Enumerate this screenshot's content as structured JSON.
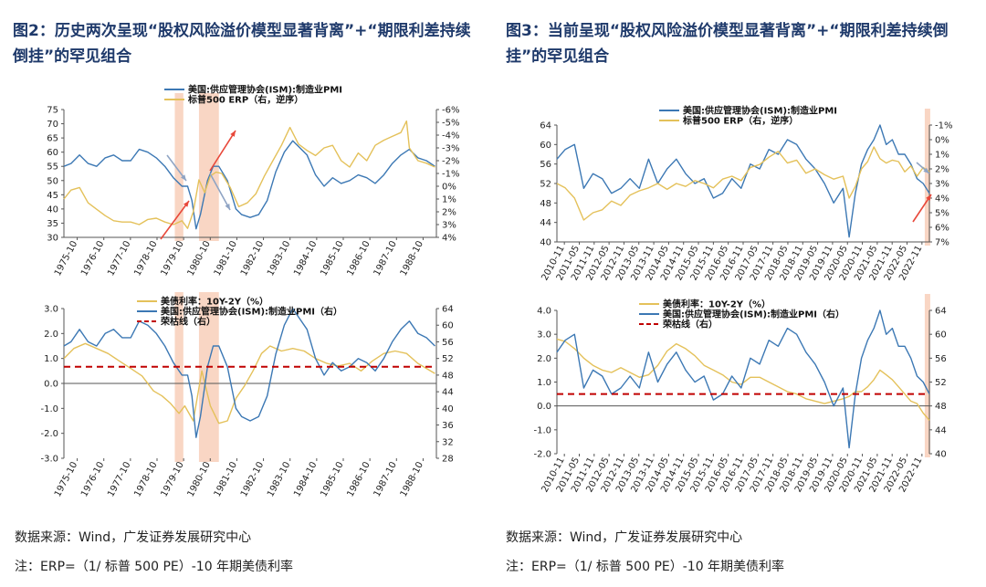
{
  "figures": [
    {
      "title": "图2：历史两次呈现“股权风险溢价模型显著背离”+“期限利差持续倒挂”的罕见组合",
      "source": "数据来源：Wind，广发证券发展研究中心",
      "note": "注：ERP=（1/ 标普 500 PE）-10 年期美债利率"
    },
    {
      "title": "图3：当前呈现“股权风险溢价模型显著背离”+“期限利差持续倒挂”的罕见组合",
      "source": "数据来源：Wind，广发证券发展研究中心",
      "note": "注：ERP=（1/ 标普 500 PE）-10 年期美债利率"
    }
  ],
  "chart_data": [
    {
      "type": "line",
      "x_ticks": [
        "1975-10",
        "1976-10",
        "1977-10",
        "1978-10",
        "1979-10",
        "1980-10",
        "1981-10",
        "1982-10",
        "1983-10",
        "1984-10",
        "1985-10",
        "1986-10",
        "1987-10",
        "1988-10"
      ],
      "x_range": [
        1975.75,
        1988.85
      ],
      "left_ylim": [
        30,
        75
      ],
      "left_ticks": [
        30,
        35,
        40,
        45,
        50,
        55,
        60,
        65,
        70,
        75
      ],
      "right_ylim": [
        4,
        -6
      ],
      "right_ticks": [
        "4%",
        "3%",
        "2%",
        "1%",
        "0%",
        "-1%",
        "-2%",
        "-3%",
        "-4%",
        "-5%",
        "-6%"
      ],
      "right_inverted": true,
      "series": [
        {
          "name": "美国:供应管理协会(ISM):制造业PMI",
          "axis": "left",
          "color": "#3c78b4",
          "x": [
            1975.75,
            1976.0,
            1976.3,
            1976.6,
            1976.9,
            1977.2,
            1977.5,
            1977.8,
            1978.1,
            1978.4,
            1978.7,
            1979.0,
            1979.3,
            1979.6,
            1979.9,
            1980.1,
            1980.25,
            1980.4,
            1980.55,
            1980.8,
            1981.0,
            1981.2,
            1981.5,
            1981.8,
            1982.0,
            1982.3,
            1982.6,
            1982.9,
            1983.2,
            1983.5,
            1983.8,
            1984.0,
            1984.3,
            1984.6,
            1984.9,
            1985.2,
            1985.5,
            1985.8,
            1986.1,
            1986.4,
            1986.7,
            1987.0,
            1987.3,
            1987.6,
            1987.9,
            1988.2,
            1988.5,
            1988.8
          ],
          "y": [
            55,
            56,
            59,
            56,
            55,
            58,
            59,
            57,
            57,
            61,
            60,
            58,
            55,
            51,
            48,
            48,
            43,
            33,
            38,
            50,
            55,
            55,
            50,
            40,
            38,
            37,
            38,
            43,
            53,
            60,
            64,
            62,
            59,
            52,
            48,
            51,
            49,
            50,
            52,
            51,
            49,
            52,
            56,
            59,
            61,
            58,
            57,
            55
          ]
        },
        {
          "name": "标普500 ERP（右，逆序）",
          "axis": "right",
          "color": "#e4c15a",
          "x": [
            1975.75,
            1976.0,
            1976.3,
            1976.6,
            1976.9,
            1977.2,
            1977.5,
            1977.8,
            1978.1,
            1978.4,
            1978.7,
            1979.0,
            1979.3,
            1979.6,
            1979.9,
            1980.1,
            1980.3,
            1980.5,
            1980.7,
            1980.9,
            1981.1,
            1981.3,
            1981.6,
            1981.9,
            1982.2,
            1982.5,
            1982.8,
            1983.1,
            1983.4,
            1983.7,
            1984.0,
            1984.3,
            1984.6,
            1984.9,
            1985.2,
            1985.5,
            1985.8,
            1986.1,
            1986.4,
            1986.7,
            1987.0,
            1987.3,
            1987.6,
            1987.8,
            1987.9,
            1988.2,
            1988.5,
            1988.8
          ],
          "y": [
            1.0,
            0.3,
            0.1,
            1.3,
            1.8,
            2.3,
            2.7,
            2.8,
            2.8,
            3.0,
            2.6,
            2.5,
            2.8,
            3.0,
            2.7,
            3.3,
            2.0,
            -0.5,
            0.5,
            -0.8,
            -1.1,
            -1.0,
            0.1,
            1.6,
            1.3,
            0.6,
            -0.8,
            -2.0,
            -3.2,
            -4.6,
            -3.3,
            -2.8,
            -2.4,
            -3.0,
            -3.2,
            -2.0,
            -1.5,
            -2.6,
            -2.0,
            -3.2,
            -3.6,
            -3.9,
            -4.2,
            -5.1,
            -3.0,
            -2.0,
            -1.8,
            -1.5
          ]
        }
      ],
      "shaded_x": [
        [
          1979.65,
          1979.95
        ],
        [
          1980.5,
          1981.2
        ]
      ]
    },
    {
      "type": "line",
      "x_ticks": [
        "1975-10",
        "1976-10",
        "1977-10",
        "1978-10",
        "1979-10",
        "1980-10",
        "1981-10",
        "1982-10",
        "1983-10",
        "1984-10",
        "1985-10",
        "1986-10",
        "1987-10",
        "1988-10"
      ],
      "x_range": [
        1975.75,
        1988.85
      ],
      "left_ylim": [
        -3,
        3
      ],
      "left_ticks": [
        "-3.0",
        "-2.0",
        "-1.0",
        "0.0",
        "1.0",
        "2.0",
        "3.0"
      ],
      "right_ylim": [
        28,
        64
      ],
      "right_ticks": [
        28,
        32,
        36,
        40,
        44,
        48,
        52,
        56,
        60,
        64
      ],
      "series": [
        {
          "name": "美债利率：10Y-2Y（%）",
          "axis": "left",
          "color": "#e4c15a",
          "x": [
            1975.75,
            1976.1,
            1976.5,
            1976.9,
            1977.3,
            1977.7,
            1978.1,
            1978.5,
            1978.9,
            1979.2,
            1979.5,
            1979.8,
            1980.0,
            1980.3,
            1980.6,
            1980.9,
            1981.2,
            1981.5,
            1981.8,
            1982.1,
            1982.4,
            1982.7,
            1983.0,
            1983.4,
            1983.8,
            1984.2,
            1984.6,
            1985.0,
            1985.4,
            1985.8,
            1986.2,
            1986.6,
            1987.0,
            1987.4,
            1987.8,
            1988.2,
            1988.5,
            1988.8
          ],
          "y": [
            1.0,
            1.4,
            1.6,
            1.4,
            1.2,
            0.9,
            0.6,
            0.3,
            -0.3,
            -0.5,
            -0.8,
            -1.2,
            -0.9,
            -1.5,
            0.5,
            -0.9,
            -1.6,
            -1.5,
            -0.6,
            -0.1,
            0.5,
            1.2,
            1.5,
            1.3,
            1.4,
            1.3,
            1.0,
            0.8,
            0.7,
            0.8,
            0.5,
            0.9,
            1.2,
            1.3,
            1.2,
            0.8,
            0.6,
            0.4
          ]
        },
        {
          "name": "美国:供应管理协会(ISM):制造业PMI（右）",
          "axis": "right",
          "color": "#3c78b4",
          "x": [
            1975.75,
            1976.0,
            1976.3,
            1976.6,
            1976.9,
            1977.2,
            1977.5,
            1977.8,
            1978.1,
            1978.4,
            1978.7,
            1979.0,
            1979.3,
            1979.6,
            1979.9,
            1980.1,
            1980.25,
            1980.4,
            1980.55,
            1980.8,
            1981.0,
            1981.2,
            1981.5,
            1981.8,
            1982.0,
            1982.3,
            1982.6,
            1982.9,
            1983.2,
            1983.5,
            1983.8,
            1984.0,
            1984.3,
            1984.6,
            1984.9,
            1985.2,
            1985.5,
            1985.8,
            1986.1,
            1986.4,
            1986.7,
            1987.0,
            1987.3,
            1987.6,
            1987.9,
            1988.2,
            1988.5,
            1988.8
          ],
          "y": [
            55,
            56,
            59,
            56,
            55,
            58,
            59,
            57,
            57,
            61,
            60,
            58,
            55,
            51,
            48,
            48,
            43,
            33,
            38,
            50,
            55,
            55,
            50,
            40,
            38,
            37,
            38,
            43,
            53,
            60,
            64,
            62,
            59,
            52,
            48,
            51,
            49,
            50,
            52,
            51,
            49,
            52,
            56,
            59,
            61,
            58,
            57,
            55
          ]
        },
        {
          "name": "荣枯线（右）",
          "axis": "right",
          "color": "#c00000",
          "dashed": true,
          "x": [
            1975.75,
            1988.85
          ],
          "y": [
            50,
            50
          ]
        }
      ],
      "shaded_x": [
        [
          1979.65,
          1979.95
        ],
        [
          1980.5,
          1981.2
        ]
      ]
    },
    {
      "type": "line",
      "x_ticks": [
        "2010-11",
        "2011-05",
        "2011-11",
        "2012-05",
        "2012-11",
        "2013-05",
        "2013-11",
        "2014-05",
        "2014-11",
        "2015-05",
        "2015-11",
        "2016-05",
        "2016-11",
        "2017-05",
        "2017-11",
        "2018-05",
        "2018-11",
        "2019-05",
        "2019-11",
        "2020-05",
        "2020-11",
        "2021-05",
        "2021-11",
        "2022-05",
        "2022-11"
      ],
      "x_range": [
        2010.83,
        2022.9
      ],
      "left_ylim": [
        40,
        64
      ],
      "left_ticks": [
        40,
        44,
        48,
        52,
        56,
        60,
        64
      ],
      "right_ylim": [
        7,
        -1
      ],
      "right_ticks": [
        "7%",
        "6%",
        "5%",
        "4%",
        "3%",
        "2%",
        "1%",
        "0%",
        "-1%"
      ],
      "right_inverted": true,
      "series": [
        {
          "name": "美国:供应管理协会(ISM):制造业PMI",
          "axis": "left",
          "color": "#3c78b4",
          "x": [
            2010.83,
            2011.1,
            2011.4,
            2011.7,
            2012.0,
            2012.3,
            2012.6,
            2012.9,
            2013.2,
            2013.5,
            2013.8,
            2014.1,
            2014.4,
            2014.7,
            2015.0,
            2015.3,
            2015.6,
            2015.9,
            2016.2,
            2016.5,
            2016.8,
            2017.1,
            2017.4,
            2017.7,
            2018.0,
            2018.3,
            2018.6,
            2018.9,
            2019.2,
            2019.5,
            2019.8,
            2020.1,
            2020.3,
            2020.5,
            2020.7,
            2020.9,
            2021.1,
            2021.3,
            2021.5,
            2021.7,
            2021.9,
            2022.1,
            2022.3,
            2022.5,
            2022.7,
            2022.9
          ],
          "y": [
            57,
            59,
            60,
            51,
            54,
            53,
            50,
            51,
            53,
            51,
            57,
            52,
            55,
            57,
            54,
            52,
            53,
            49,
            50,
            53,
            51,
            56,
            55,
            59,
            58,
            61,
            60,
            57,
            55,
            52,
            48,
            51,
            41,
            50,
            56,
            59,
            61,
            64,
            60,
            61,
            58,
            58,
            56,
            53,
            52,
            50
          ]
        },
        {
          "name": "标普500 ERP（右，逆序）",
          "axis": "right",
          "color": "#e4c15a",
          "x": [
            2010.83,
            2011.1,
            2011.4,
            2011.7,
            2012.0,
            2012.3,
            2012.6,
            2012.9,
            2013.2,
            2013.5,
            2013.8,
            2014.1,
            2014.4,
            2014.7,
            2015.0,
            2015.3,
            2015.6,
            2015.9,
            2016.2,
            2016.5,
            2016.8,
            2017.1,
            2017.4,
            2017.7,
            2018.0,
            2018.3,
            2018.6,
            2018.9,
            2019.2,
            2019.5,
            2019.8,
            2020.1,
            2020.3,
            2020.5,
            2020.7,
            2020.9,
            2021.1,
            2021.3,
            2021.5,
            2021.7,
            2021.9,
            2022.1,
            2022.3,
            2022.5,
            2022.7,
            2022.9
          ],
          "y": [
            3.0,
            3.3,
            4.0,
            5.5,
            5.0,
            4.8,
            4.2,
            4.5,
            3.8,
            3.5,
            3.3,
            3.0,
            3.4,
            3.0,
            3.2,
            2.8,
            3.0,
            3.3,
            2.7,
            2.5,
            2.8,
            1.9,
            1.7,
            1.2,
            0.8,
            1.6,
            1.4,
            2.3,
            2.0,
            2.4,
            2.7,
            2.5,
            4.0,
            3.2,
            2.0,
            1.5,
            0.5,
            1.3,
            1.6,
            1.4,
            1.5,
            2.2,
            1.8,
            2.5,
            1.9,
            2.2
          ]
        }
      ],
      "shaded_x": [
        [
          2022.75,
          2022.9
        ]
      ]
    },
    {
      "type": "line",
      "x_ticks": [
        "2010-11",
        "2011-05",
        "2011-11",
        "2012-05",
        "2012-11",
        "2013-05",
        "2013-11",
        "2014-05",
        "2014-11",
        "2015-05",
        "2015-11",
        "2016-05",
        "2016-11",
        "2017-05",
        "2017-11",
        "2018-05",
        "2018-11",
        "2019-05",
        "2019-11",
        "2020-05",
        "2020-11",
        "2021-05",
        "2021-11",
        "2022-05",
        "2022-11"
      ],
      "x_range": [
        2010.83,
        2022.9
      ],
      "left_ylim": [
        -2,
        4
      ],
      "left_ticks": [
        "-2.0",
        "-1.0",
        "0.0",
        "1.0",
        "2.0",
        "3.0",
        "4.0"
      ],
      "right_ylim": [
        40,
        64
      ],
      "right_ticks": [
        40,
        44,
        48,
        52,
        56,
        60,
        64
      ],
      "series": [
        {
          "name": "美债利率：10Y-2Y（%）",
          "axis": "left",
          "color": "#e4c15a",
          "x": [
            2010.83,
            2011.1,
            2011.4,
            2011.7,
            2012.0,
            2012.3,
            2012.6,
            2012.9,
            2013.2,
            2013.5,
            2013.8,
            2014.1,
            2014.4,
            2014.7,
            2015.0,
            2015.3,
            2015.6,
            2015.9,
            2016.2,
            2016.5,
            2016.8,
            2017.1,
            2017.4,
            2017.7,
            2018.0,
            2018.3,
            2018.6,
            2018.9,
            2019.2,
            2019.5,
            2019.8,
            2020.1,
            2020.3,
            2020.5,
            2020.7,
            2020.9,
            2021.1,
            2021.3,
            2021.5,
            2021.7,
            2021.9,
            2022.1,
            2022.3,
            2022.5,
            2022.7,
            2022.9
          ],
          "y": [
            2.8,
            2.7,
            2.4,
            2.0,
            1.7,
            1.5,
            1.4,
            1.6,
            1.4,
            1.2,
            1.3,
            1.7,
            2.3,
            2.6,
            2.4,
            2.1,
            1.7,
            1.5,
            1.3,
            1.0,
            0.9,
            1.2,
            1.2,
            1.0,
            0.8,
            0.6,
            0.5,
            0.3,
            0.2,
            0.1,
            0.2,
            0.3,
            0.4,
            0.6,
            0.6,
            0.8,
            1.1,
            1.5,
            1.3,
            1.1,
            0.8,
            0.5,
            0.2,
            0.1,
            -0.3,
            -0.6
          ]
        },
        {
          "name": "美国:供应管理协会(ISM):制造业PMI（右）",
          "axis": "right",
          "color": "#3c78b4",
          "x": [
            2010.83,
            2011.1,
            2011.4,
            2011.7,
            2012.0,
            2012.3,
            2012.6,
            2012.9,
            2013.2,
            2013.5,
            2013.8,
            2014.1,
            2014.4,
            2014.7,
            2015.0,
            2015.3,
            2015.6,
            2015.9,
            2016.2,
            2016.5,
            2016.8,
            2017.1,
            2017.4,
            2017.7,
            2018.0,
            2018.3,
            2018.6,
            2018.9,
            2019.2,
            2019.5,
            2019.8,
            2020.1,
            2020.3,
            2020.5,
            2020.7,
            2020.9,
            2021.1,
            2021.3,
            2021.5,
            2021.7,
            2021.9,
            2022.1,
            2022.3,
            2022.5,
            2022.7,
            2022.9
          ],
          "y": [
            57,
            59,
            60,
            51,
            54,
            53,
            50,
            51,
            53,
            51,
            57,
            52,
            55,
            57,
            54,
            52,
            53,
            49,
            50,
            53,
            51,
            56,
            55,
            59,
            58,
            61,
            60,
            57,
            55,
            52,
            48,
            51,
            41,
            50,
            56,
            59,
            61,
            64,
            60,
            61,
            58,
            58,
            56,
            53,
            52,
            50
          ]
        },
        {
          "name": "荣枯线（右）",
          "axis": "right",
          "color": "#c00000",
          "dashed": true,
          "x": [
            2010.83,
            2022.9
          ],
          "y": [
            50,
            50
          ]
        }
      ],
      "shaded_x": [
        [
          2022.75,
          2022.9
        ]
      ]
    }
  ]
}
